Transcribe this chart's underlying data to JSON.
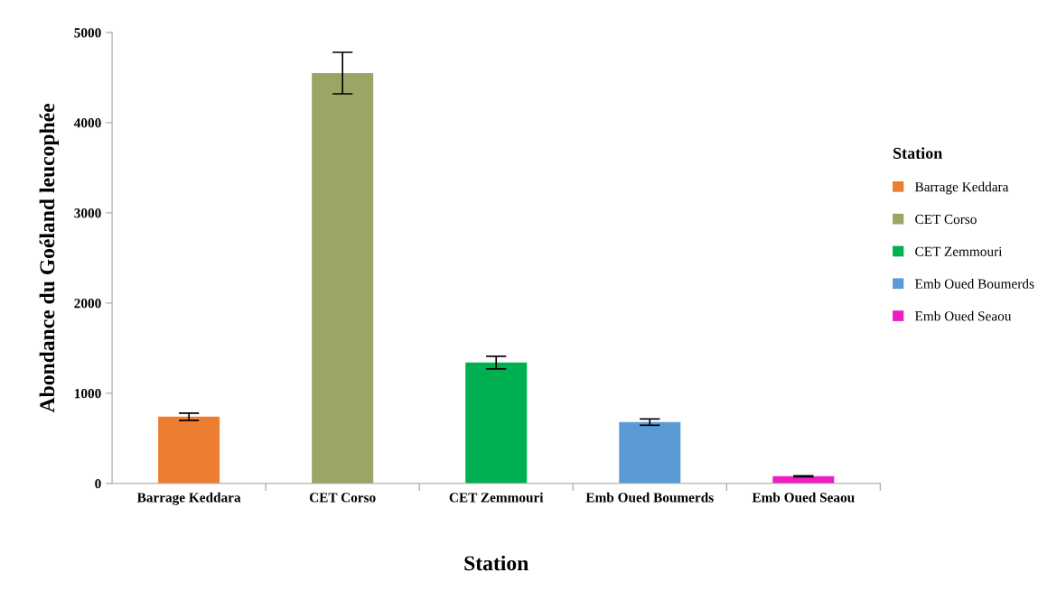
{
  "chart_data": {
    "type": "bar",
    "categories": [
      "Barrage Keddara",
      "CET Corso",
      "CET Zemmouri",
      "Emb Oued Boumerds",
      "Emb Oued Seaou"
    ],
    "series": [
      {
        "name": "Barrage Keddara",
        "color": "#ed7d31",
        "values": [
          740,
          null,
          null,
          null,
          null
        ],
        "errors": [
          40,
          null,
          null,
          null,
          null
        ]
      },
      {
        "name": "CET Corso",
        "color": "#9ba566",
        "values": [
          null,
          4550,
          null,
          null,
          null
        ],
        "errors": [
          null,
          230,
          null,
          null,
          null
        ]
      },
      {
        "name": "CET Zemmouri",
        "color": "#00b050",
        "values": [
          null,
          null,
          1340,
          null,
          null
        ],
        "errors": [
          null,
          null,
          70,
          null,
          null
        ]
      },
      {
        "name": "Emb Oued Boumerds",
        "color": "#5b9bd5",
        "values": [
          null,
          null,
          null,
          680,
          null
        ],
        "errors": [
          null,
          null,
          null,
          35,
          null
        ]
      },
      {
        "name": "Emb Oued Seaou",
        "color": "#ee1dc4",
        "values": [
          null,
          null,
          null,
          null,
          80
        ],
        "errors": [
          null,
          null,
          null,
          null,
          5
        ]
      }
    ],
    "xlabel": "Station",
    "ylabel": "Abondance du Goéland leucophée",
    "legend_title": "Station",
    "legend": "right",
    "ylim": [
      0,
      5000
    ],
    "yticks": [
      0,
      1000,
      2000,
      3000,
      4000,
      5000
    ],
    "grid": false
  }
}
